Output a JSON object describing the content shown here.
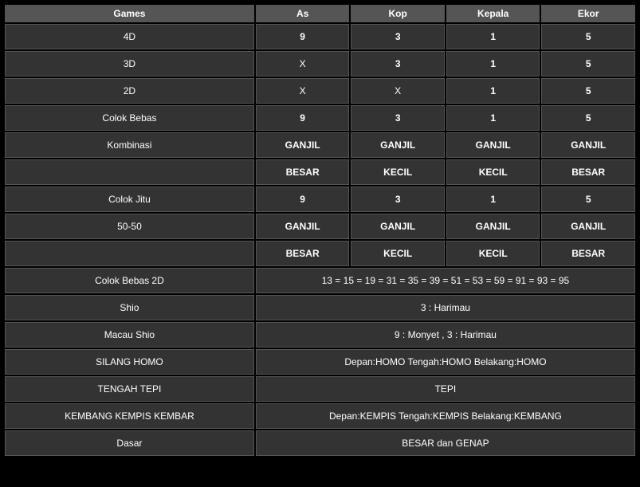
{
  "headers": {
    "games": "Games",
    "as": "As",
    "kop": "Kop",
    "kepala": "Kepala",
    "ekor": "Ekor"
  },
  "rows": {
    "r4d": {
      "game": "4D",
      "as": "9",
      "kop": "3",
      "kepala": "1",
      "ekor": "5"
    },
    "r3d": {
      "game": "3D",
      "as": "X",
      "kop": "3",
      "kepala": "1",
      "ekor": "5"
    },
    "r2d": {
      "game": "2D",
      "as": "X",
      "kop": "X",
      "kepala": "1",
      "ekor": "5"
    },
    "colokBebas": {
      "game": "Colok Bebas",
      "as": "9",
      "kop": "3",
      "kepala": "1",
      "ekor": "5"
    },
    "kombinasi1": {
      "game": "Kombinasi",
      "as": "GANJIL",
      "kop": "GANJIL",
      "kepala": "GANJIL",
      "ekor": "GANJIL"
    },
    "kombinasi2": {
      "game": "",
      "as": "BESAR",
      "kop": "KECIL",
      "kepala": "KECIL",
      "ekor": "BESAR"
    },
    "colokJitu": {
      "game": "Colok Jitu",
      "as": "9",
      "kop": "3",
      "kepala": "1",
      "ekor": "5"
    },
    "r5050a": {
      "game": "50-50",
      "as": "GANJIL",
      "kop": "GANJIL",
      "kepala": "GANJIL",
      "ekor": "GANJIL"
    },
    "r5050b": {
      "game": "",
      "as": "BESAR",
      "kop": "KECIL",
      "kepala": "KECIL",
      "ekor": "BESAR"
    },
    "colokBebas2d": {
      "game": "Colok Bebas 2D",
      "value": "13 = 15 = 19 = 31 = 35 = 39 = 51 = 53 = 59 = 91 = 93 = 95"
    },
    "shio": {
      "game": "Shio",
      "value": "3 : Harimau"
    },
    "macauShio": {
      "game": "Macau Shio",
      "value": "9 : Monyet , 3 : Harimau"
    },
    "silangHomo": {
      "game": "SILANG HOMO",
      "value": "Depan:HOMO Tengah:HOMO Belakang:HOMO"
    },
    "tengahTepi": {
      "game": "TENGAH TEPI",
      "value": "TEPI"
    },
    "kembangKempis": {
      "game": "KEMBANG KEMPIS KEMBAR",
      "value": "Depan:KEMPIS Tengah:KEMPIS Belakang:KEMBANG"
    },
    "dasar": {
      "game": "Dasar",
      "value": "BESAR dan GENAP"
    }
  }
}
